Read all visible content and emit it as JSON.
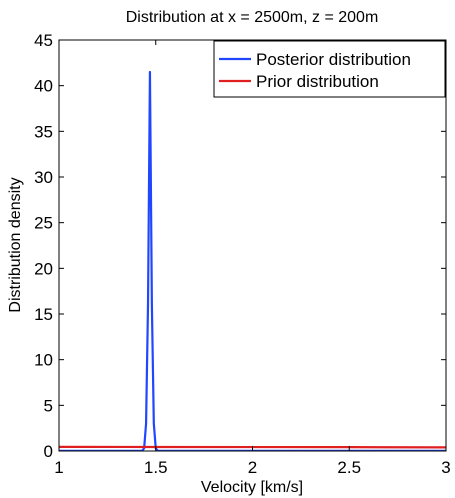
{
  "chart_data": {
    "type": "line",
    "title": "Distribution at x = 2500m, z = 200m",
    "xlabel": "Velocity [km/s]",
    "ylabel": "Distribution density",
    "xlim": [
      1,
      3
    ],
    "ylim": [
      0,
      45
    ],
    "xticks": [
      "1",
      "1.5",
      "2",
      "2.5",
      "3"
    ],
    "yticks": [
      "0",
      "5",
      "10",
      "15",
      "20",
      "25",
      "30",
      "35",
      "40",
      "45"
    ],
    "grid": false,
    "legend_position": "top-right",
    "series": [
      {
        "name": "Posterior distribution",
        "color": "#2047ff",
        "x": [
          1.0,
          1.43,
          1.44,
          1.45,
          1.46,
          1.47,
          1.48,
          1.49,
          1.5,
          1.51,
          1.52,
          3.0
        ],
        "y": [
          0.02,
          0.02,
          0.3,
          3.0,
          16.0,
          41.5,
          16.0,
          3.0,
          0.3,
          0.02,
          0.02,
          0.02
        ]
      },
      {
        "name": "Prior distribution",
        "color": "#e02020",
        "x": [
          1.0,
          1.5,
          2.0,
          2.5,
          3.0
        ],
        "y": [
          0.45,
          0.44,
          0.43,
          0.42,
          0.4
        ]
      }
    ]
  }
}
